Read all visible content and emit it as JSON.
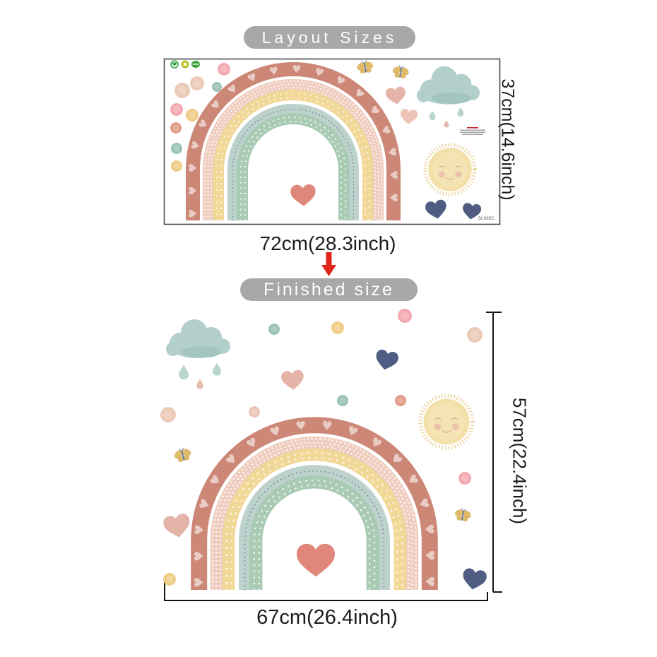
{
  "layout_section": {
    "banner": "Layout Sizes",
    "height_label": "37cm(14.6inch)",
    "width_label": "72cm(28.3inch)",
    "sheet_code": "SL985C"
  },
  "finished_section": {
    "banner": "Finished size",
    "height_label": "57cm(22.4inch)",
    "width_label": "67cm(26.4inch)"
  },
  "colors": {
    "banner_gray": "#a8a8a8",
    "banner_text": "#fefefe",
    "text_dark": "#1c1c1c",
    "arrow_red": "#e02419",
    "measure_line": "#141414",
    "sheet_border": "#4a4a4a",
    "rainbow_terracotta": "#c9816f",
    "rainbow_blush": "#eec9bb",
    "rainbow_yellow": "#f1d691",
    "rainbow_blue": "#b9cfca",
    "rainbow_sage": "#a4c8b0",
    "scallop_teal": "#5e7d86",
    "heart_coral": "#dc8173",
    "heart_navy": "#47547c",
    "heart_blush": "#e2b0a2",
    "cloud_teal": "#b2cfcb",
    "cloud_shade": "#9fc2bd",
    "sun_body": "#f3dfa8",
    "sun_fringe": "#e9d094",
    "sun_cheek": "#eabca8",
    "dot_pink": "#f3a3ad",
    "dot_peach": "#e9c6b2",
    "dot_teal": "#94bfae",
    "dot_yellow": "#eec97e",
    "dot_coral": "#df9582",
    "dot_blush": "#ecc0b2",
    "drop_teal": "#b3cfcb",
    "drop_blush": "#e3b4a6",
    "butterfly_wing": "#e0bc68",
    "butterfly_body": "#5d74a8",
    "badge_green": "#2f9e41",
    "badge_olive": "#c9cf3f"
  }
}
